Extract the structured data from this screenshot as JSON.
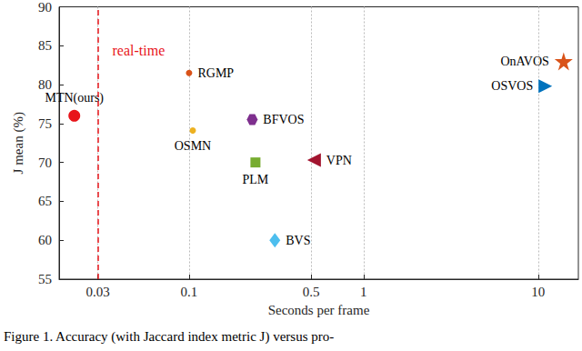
{
  "chart_data": {
    "type": "scatter",
    "x_label": "Seconds per frame",
    "y_label": "J mean (%)",
    "caption": "Figure 1. Accuracy (with Jaccard index metric J) versus pro-",
    "log": "x",
    "grid": true,
    "xlim": [
      0.018,
      17
    ],
    "xticks": [
      0.03,
      0.1,
      0.5,
      1,
      10
    ],
    "ylim": [
      55,
      90
    ],
    "yticks": [
      55,
      60,
      65,
      70,
      75,
      80,
      85,
      90
    ],
    "annotations": [
      {
        "text": "real-time",
        "x": 0.033,
        "color": "#e8141a",
        "line_style": "dashed"
      }
    ],
    "series": [
      {
        "name": "MTN(ours)",
        "x": [
          0.022
        ],
        "values": [
          76.0
        ],
        "color": "#e8141a",
        "marker": "circle"
      },
      {
        "name": "RGMP",
        "x": [
          0.1
        ],
        "values": [
          81.5
        ],
        "color": "#d95319",
        "marker": "small-circle"
      },
      {
        "name": "OSMN",
        "x": [
          0.105
        ],
        "values": [
          74.1
        ],
        "color": "#edb120",
        "marker": "small-circle"
      },
      {
        "name": "BFVOS",
        "x": [
          0.23
        ],
        "values": [
          75.5
        ],
        "color": "#7e2f8e",
        "marker": "hexagon"
      },
      {
        "name": "PLM",
        "x": [
          0.24
        ],
        "values": [
          70.0
        ],
        "color": "#77ac30",
        "marker": "square"
      },
      {
        "name": "BVS",
        "x": [
          0.31
        ],
        "values": [
          60.0
        ],
        "color": "#4dbeee",
        "marker": "diamond"
      },
      {
        "name": "VPN",
        "x": [
          0.52
        ],
        "values": [
          70.3
        ],
        "color": "#a2142f",
        "marker": "triangle-left"
      },
      {
        "name": "OSVOS",
        "x": [
          11
        ],
        "values": [
          79.8
        ],
        "color": "#0072bd",
        "marker": "triangle-right"
      },
      {
        "name": "OnAVOS",
        "x": [
          14
        ],
        "values": [
          83.0
        ],
        "color": "#d95319",
        "marker": "star"
      }
    ]
  }
}
